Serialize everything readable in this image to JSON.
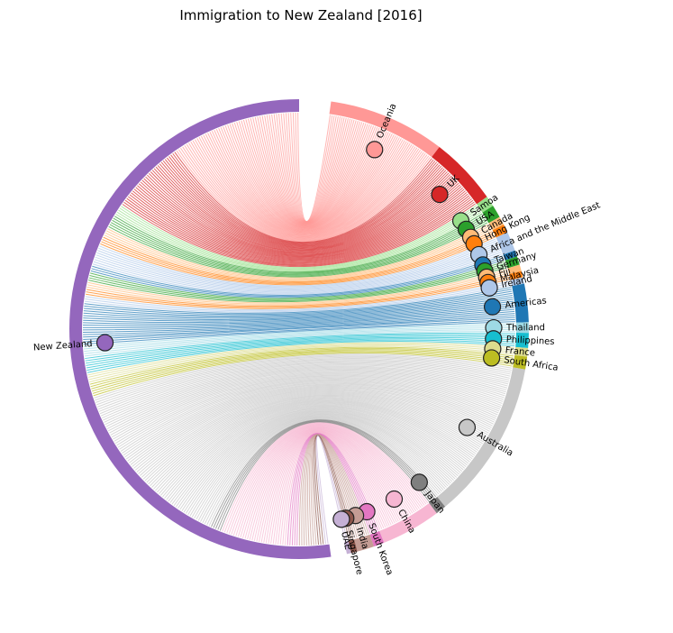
{
  "chart_data": {
    "type": "chord",
    "title": "Immigration to New Zealand [2016]",
    "hub": {
      "name": "New Zealand",
      "color": "#9467bd"
    },
    "nodes": [
      {
        "name": "Oceania",
        "color": "#ff9896",
        "count": 55
      },
      {
        "name": "UK",
        "color": "#d62728",
        "count": 32
      },
      {
        "name": "Samoa",
        "color": "#98df8a",
        "count": 5
      },
      {
        "name": "USA",
        "color": "#2ca02c",
        "count": 6
      },
      {
        "name": "Canada",
        "color": "#ffbb78",
        "count": 4
      },
      {
        "name": "Hong Kong",
        "color": "#ff7f0e",
        "count": 4
      },
      {
        "name": "Africa and the Middle East",
        "color": "#aec7e8",
        "count": 9
      },
      {
        "name": "Taiwan",
        "color": "#1f77b4",
        "count": 3
      },
      {
        "name": "Germany",
        "color": "#2ca02c",
        "count": 4
      },
      {
        "name": "Fiji",
        "color": "#ffbb78",
        "count": 3
      },
      {
        "name": "Malaysia",
        "color": "#ff7f0e",
        "count": 3
      },
      {
        "name": "Ireland",
        "color": "#aec7e8",
        "count": 3
      },
      {
        "name": "Americas",
        "color": "#1f77b4",
        "count": 18
      },
      {
        "name": "Thailand",
        "color": "#9edae5",
        "count": 5
      },
      {
        "name": "Philippines",
        "color": "#17becf",
        "count": 7
      },
      {
        "name": "France",
        "color": "#dbdb8d",
        "count": 4
      },
      {
        "name": "South Africa",
        "color": "#bcbd22",
        "count": 6
      },
      {
        "name": "Australia",
        "color": "#c7c7c7",
        "count": 75
      },
      {
        "name": "Japan",
        "color": "#7f7f7f",
        "count": 5
      },
      {
        "name": "China",
        "color": "#f7b6d2",
        "count": 28
      },
      {
        "name": "South Korea",
        "color": "#e377c2",
        "count": 5
      },
      {
        "name": "India",
        "color": "#c49c94",
        "count": 8
      },
      {
        "name": "Singapore",
        "color": "#8c564b",
        "count": 3
      },
      {
        "name": "UAE",
        "color": "#c5b0d5",
        "count": 2
      }
    ]
  }
}
